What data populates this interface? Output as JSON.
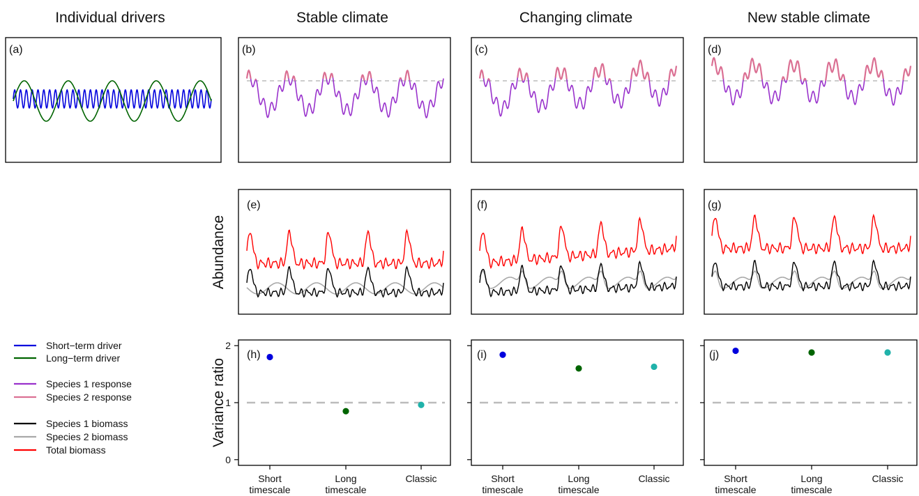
{
  "column_titles": [
    "Individual drivers",
    "Stable climate",
    "Changing climate",
    "New stable climate"
  ],
  "panel_labels": [
    "(a)",
    "(b)",
    "(c)",
    "(d)",
    "(e)",
    "(f)",
    "(g)",
    "(h)",
    "(i)",
    "(j)"
  ],
  "ylabel_abundance": "Abundance",
  "ylabel_variance": "Variance ratio",
  "legend": {
    "items": [
      {
        "label": "Short−term driver",
        "color": "#0000dd"
      },
      {
        "label": "Long−term driver",
        "color": "#006400"
      },
      {
        "label": "Species 1 response",
        "color": "#9932cc"
      },
      {
        "label": "Species 2 response",
        "color": "#db7093"
      },
      {
        "label": "Species 1 biomass",
        "color": "#000000"
      },
      {
        "label": "Species 2 biomass",
        "color": "#a9a9a9"
      },
      {
        "label": "Total biomass",
        "color": "#ff0000"
      }
    ]
  },
  "colors": {
    "short": "#0000dd",
    "long": "#006400",
    "classic": "#20b2aa",
    "sp1resp": "#9932cc",
    "sp2resp": "#db7093",
    "sp1bio": "#000000",
    "sp2bio": "#a9a9a9",
    "total": "#ff0000",
    "reference": "#bbbbbb"
  },
  "chart_data": [
    {
      "type": "scatter",
      "panel": "(h)",
      "categories": [
        "Short\ntimescale",
        "Long\ntimescale",
        "Classic"
      ],
      "values": [
        1.8,
        0.85,
        0.96
      ],
      "yticks": [
        0,
        1,
        2
      ],
      "ylim": [
        -0.1,
        2.1
      ],
      "reference_line": 1,
      "ylabel": "Variance ratio"
    },
    {
      "type": "scatter",
      "panel": "(i)",
      "categories": [
        "Short\ntimescale",
        "Long\ntimescale",
        "Classic"
      ],
      "values": [
        1.84,
        1.6,
        1.63
      ],
      "ylim": [
        -0.1,
        2.1
      ],
      "reference_line": 1
    },
    {
      "type": "scatter",
      "panel": "(j)",
      "categories": [
        "Short\ntimescale",
        "Long\ntimescale",
        "Classic"
      ],
      "values": [
        1.91,
        1.88,
        1.88
      ],
      "ylim": [
        -0.1,
        2.1
      ],
      "reference_line": 1
    }
  ]
}
